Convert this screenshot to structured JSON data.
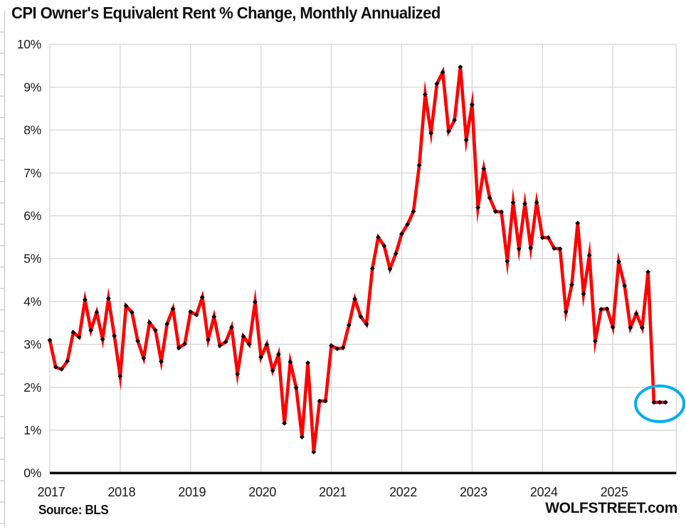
{
  "title": "CPI Owner's Equivalent Rent % Change, Monthly Annualized",
  "footer": {
    "source": "Source: BLS",
    "watermark": "WOLFSTREET.com"
  },
  "colors": {
    "line": "#ff0000",
    "marker": "#000000",
    "grid": "#d9d9d9",
    "zero_axis": "#000000",
    "edge_ticks": "#c9c9c9",
    "text": "#1a1a1a",
    "highlight_ellipse": "#00aeef"
  },
  "chart_data": {
    "type": "line",
    "title": "CPI Owner's Equivalent Rent % Change, Monthly Annualized",
    "xlabel": "",
    "ylabel": "",
    "x_axis": {
      "tick_labels": [
        "2017",
        "2018",
        "2019",
        "2020",
        "2021",
        "2022",
        "2023",
        "2024",
        "2025"
      ],
      "start_month": "2017-01",
      "end_month": "2025-10",
      "interval": "monthly"
    },
    "y_axis": {
      "tick_labels": [
        "0%",
        "1%",
        "2%",
        "3%",
        "4%",
        "5%",
        "6%",
        "7%",
        "8%",
        "9%",
        "10%"
      ],
      "min": 0,
      "max": 10,
      "unit": "percent"
    },
    "grid": true,
    "legend": "none",
    "series": [
      {
        "name": "OER monthly % change, annualized",
        "color": "#ff0000",
        "marker": "black-diamond",
        "start": "2017-01",
        "values": [
          3.1,
          2.47,
          2.42,
          2.61,
          3.28,
          3.17,
          4.04,
          3.33,
          3.75,
          3.12,
          4.07,
          3.2,
          2.26,
          3.9,
          3.75,
          3.08,
          2.68,
          3.51,
          3.33,
          2.6,
          3.48,
          3.83,
          2.92,
          3.01,
          3.76,
          3.69,
          4.1,
          3.11,
          3.65,
          2.97,
          3.06,
          3.4,
          2.31,
          3.19,
          3.0,
          3.99,
          2.7,
          3.0,
          2.39,
          2.77,
          1.16,
          2.59,
          1.99,
          0.84,
          2.57,
          0.49,
          1.68,
          1.68,
          2.97,
          2.9,
          2.92,
          3.45,
          4.06,
          3.65,
          3.47,
          4.77,
          5.5,
          5.3,
          4.76,
          5.12,
          5.58,
          5.8,
          6.1,
          7.18,
          8.83,
          7.93,
          9.08,
          9.35,
          7.97,
          8.23,
          9.47,
          7.77,
          8.59,
          6.19,
          7.1,
          6.42,
          6.1,
          6.09,
          4.94,
          6.31,
          5.23,
          6.28,
          5.25,
          6.31,
          5.49,
          5.49,
          5.24,
          5.23,
          3.76,
          4.39,
          5.83,
          4.18,
          5.08,
          3.08,
          3.82,
          3.83,
          3.4,
          4.93,
          4.37,
          3.39,
          3.72,
          3.39,
          4.69,
          1.65,
          1.65,
          1.65
        ]
      }
    ],
    "annotations": [
      {
        "type": "ellipse",
        "label": "last-three-months-highlight",
        "color": "#00aeef",
        "months": [
          "2025-08",
          "2025-09",
          "2025-10"
        ],
        "value": 1.65
      }
    ]
  }
}
